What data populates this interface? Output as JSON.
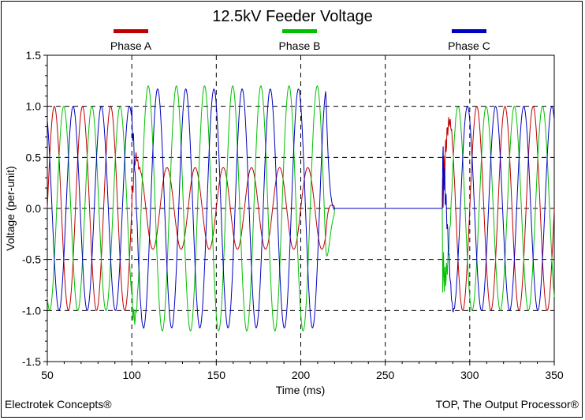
{
  "footer": {
    "left": "Electrotek Concepts®",
    "right": "TOP, The Output Processor®"
  },
  "chart_data": {
    "type": "line",
    "title": "12.5kV Feeder Voltage",
    "xlabel": "Time (ms)",
    "ylabel": "Voltage (per-unit)",
    "xlim": [
      50,
      350
    ],
    "ylim": [
      -1.5,
      1.5
    ],
    "xticks": [
      50,
      100,
      150,
      200,
      250,
      300,
      350
    ],
    "yticks": [
      1.5,
      1.0,
      0.5,
      0.0,
      -0.5,
      -1.0,
      -1.5
    ],
    "xtick_labels": [
      "50",
      "100",
      "150",
      "200",
      "250",
      "300",
      "350"
    ],
    "ytick_labels": [
      "1.5",
      "1.0",
      "0.5",
      "0.0",
      "-0.5",
      "-1.0",
      "-1.5"
    ],
    "grid": true,
    "frequency_hz": 60,
    "fault_start_ms": 100,
    "fault_clear_ms": 215,
    "outage_end_ms": 220,
    "reclose_ms": 284,
    "series": [
      {
        "name": "Phase A",
        "color": "#c00000",
        "phase_deg": 0,
        "prefault_amp": 1.0,
        "fault_amp": 0.4,
        "postfault_amp": 1.0
      },
      {
        "name": "Phase B",
        "color": "#00c000",
        "phase_deg": -120,
        "prefault_amp": 1.0,
        "fault_amp": 1.2,
        "postfault_amp": 1.0
      },
      {
        "name": "Phase C",
        "color": "#0000c0",
        "phase_deg": 120,
        "prefault_amp": 1.0,
        "fault_amp": 1.17,
        "postfault_amp": 1.0
      }
    ]
  }
}
